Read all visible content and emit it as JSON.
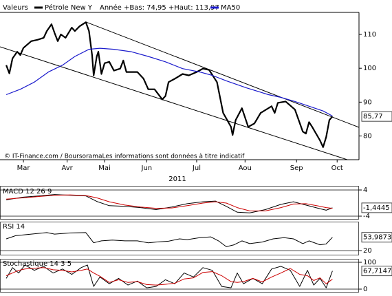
{
  "chart_data": [
    {
      "type": "line",
      "legend_title": "Valeurs",
      "annotation": "Année +Bas: 74,95 +Haut: 113,97",
      "source": "© IT-Finance.com / BoursoramaLes informations sont données à titre indicatif",
      "xlabel": "2011",
      "xlim": [
        0,
        230
      ],
      "ylim": [
        73,
        116.5
      ],
      "xticks": [
        {
          "value": 15,
          "label": "Mar"
        },
        {
          "value": 43,
          "label": "Avr"
        },
        {
          "value": 67,
          "label": "Mai"
        },
        {
          "value": 94,
          "label": "Jun"
        },
        {
          "value": 126,
          "label": "Jul"
        },
        {
          "value": 157,
          "label": "Aou"
        },
        {
          "value": 190,
          "label": "Sep"
        },
        {
          "value": 216,
          "label": "Oct"
        }
      ],
      "yticks": [
        80,
        90,
        100,
        110
      ],
      "series": [
        {
          "name": "Pétrole New Y",
          "color": "#000000",
          "width": 2.2,
          "last_label": "85,77",
          "x": [
            4,
            6,
            8,
            11,
            13,
            15,
            20,
            24,
            28,
            30,
            33,
            35,
            37,
            39,
            42,
            46,
            48,
            51,
            55,
            57,
            59,
            60,
            62,
            63,
            65,
            67,
            70,
            73,
            77,
            79,
            81,
            88,
            92,
            95,
            99,
            104,
            106,
            108,
            112,
            117,
            121,
            126,
            130,
            134,
            139,
            143,
            148,
            149,
            151,
            155,
            159,
            163,
            167,
            174,
            176,
            178,
            183,
            189,
            194,
            196,
            198,
            200,
            205,
            207,
            209,
            211,
            213
          ],
          "values": [
            100.9,
            98.5,
            102.9,
            104.9,
            103.9,
            106.0,
            108.0,
            108.4,
            109.0,
            111.0,
            113.0,
            110.4,
            108.0,
            110.0,
            109.0,
            112.0,
            111.0,
            112.4,
            113.6,
            111.0,
            103.9,
            97.9,
            103.5,
            104.9,
            98.3,
            101.5,
            101.9,
            99.3,
            99.9,
            102.3,
            98.9,
            98.9,
            96.9,
            93.8,
            93.8,
            90.8,
            91.8,
            95.9,
            96.9,
            98.3,
            97.9,
            98.9,
            99.9,
            99.5,
            95.9,
            86.8,
            82.7,
            80.3,
            84.7,
            88.2,
            82.7,
            83.7,
            86.8,
            88.8,
            86.8,
            89.8,
            90.2,
            87.8,
            81.3,
            80.7,
            84.1,
            82.7,
            78.7,
            76.7,
            79.7,
            84.7,
            85.77
          ]
        },
        {
          "name": "MA50",
          "color": "#1a1acc",
          "width": 1.2,
          "x": [
            4,
            13,
            22,
            31,
            40,
            48,
            57,
            64,
            73,
            84,
            95,
            106,
            117,
            128,
            136,
            145,
            158,
            172,
            180,
            189,
            198,
            207,
            213
          ],
          "values": [
            92.2,
            93.8,
            95.9,
            98.9,
            100.9,
            103.5,
            105.6,
            105.9,
            105.6,
            104.9,
            103.5,
            101.9,
            99.9,
            98.9,
            97.9,
            96.3,
            94.2,
            92.2,
            91.4,
            90.2,
            88.8,
            87.4,
            85.9
          ]
        }
      ]
    },
    {
      "type": "line",
      "title": "MACD 12 26 9",
      "xlim": [
        0,
        230
      ],
      "ylim": [
        -4,
        4
      ],
      "yticks": [
        -4,
        4
      ],
      "grid": true,
      "series": [
        {
          "color": "#000000",
          "width": 1,
          "last_label": "-1,4445",
          "x": [
            4,
            15,
            25,
            35,
            45,
            55,
            62,
            70,
            80,
            90,
            100,
            110,
            120,
            130,
            138,
            145,
            152,
            160,
            170,
            180,
            188,
            196,
            204,
            209,
            213
          ],
          "values": [
            1.0,
            1.8,
            2.2,
            2.6,
            2.4,
            2.2,
            0.5,
            -0.8,
            -1.0,
            -1.4,
            -2.0,
            -1.2,
            -0.2,
            0.4,
            0.6,
            -1.0,
            -2.8,
            -3.0,
            -2.0,
            -0.4,
            0.4,
            -0.6,
            -1.6,
            -2.2,
            -1.4445
          ]
        },
        {
          "color": "#cc0000",
          "width": 1,
          "x": [
            4,
            15,
            25,
            35,
            45,
            55,
            62,
            70,
            80,
            90,
            100,
            110,
            120,
            130,
            138,
            145,
            152,
            160,
            170,
            180,
            188,
            196,
            204,
            209,
            213
          ],
          "values": [
            1.2,
            1.6,
            2.0,
            2.4,
            2.5,
            2.3,
            1.6,
            0.4,
            -0.6,
            -1.2,
            -1.6,
            -1.5,
            -0.8,
            0.0,
            0.4,
            0.0,
            -1.4,
            -2.4,
            -2.4,
            -1.4,
            -0.3,
            -0.2,
            -0.9,
            -1.4,
            -1.6
          ]
        }
      ]
    },
    {
      "type": "line",
      "title": "RSI 14",
      "xlim": [
        0,
        230
      ],
      "ylim": [
        15,
        85
      ],
      "yticks": [
        20
      ],
      "grid": true,
      "series": [
        {
          "color": "#000000",
          "width": 1,
          "last_label": "53,9873",
          "x": [
            4,
            10,
            20,
            30,
            35,
            45,
            55,
            60,
            65,
            72,
            80,
            88,
            95,
            100,
            108,
            115,
            120,
            128,
            135,
            140,
            145,
            150,
            155,
            160,
            168,
            175,
            182,
            188,
            194,
            198,
            205,
            209,
            213
          ],
          "values": [
            50,
            58,
            62,
            66,
            62,
            65,
            66,
            40,
            45,
            47,
            45,
            45,
            40,
            42,
            44,
            50,
            48,
            53,
            55,
            45,
            30,
            35,
            45,
            38,
            42,
            50,
            53,
            50,
            38,
            45,
            35,
            37,
            53.9873
          ]
        }
      ]
    },
    {
      "type": "line",
      "title": "Stochastique 14 3 5",
      "xlim": [
        0,
        230
      ],
      "ylim": [
        0,
        100
      ],
      "yticks": [
        0,
        100
      ],
      "grid": true,
      "series": [
        {
          "color": "#000000",
          "width": 1,
          "last_label": "67,7147",
          "x": [
            4,
            8,
            12,
            16,
            22,
            28,
            34,
            40,
            46,
            52,
            56,
            60,
            64,
            70,
            76,
            82,
            88,
            94,
            100,
            106,
            112,
            118,
            124,
            130,
            136,
            142,
            148,
            152,
            156,
            162,
            168,
            174,
            180,
            186,
            192,
            197,
            201,
            205,
            209,
            213
          ],
          "values": [
            40,
            80,
            60,
            90,
            70,
            85,
            60,
            75,
            55,
            80,
            90,
            10,
            45,
            20,
            40,
            15,
            30,
            5,
            10,
            35,
            20,
            60,
            45,
            80,
            70,
            10,
            5,
            60,
            20,
            40,
            20,
            75,
            85,
            70,
            10,
            70,
            15,
            40,
            5,
            67.7147
          ]
        },
        {
          "color": "#cc0000",
          "width": 1,
          "x": [
            4,
            8,
            12,
            16,
            22,
            28,
            34,
            40,
            46,
            52,
            56,
            60,
            64,
            70,
            76,
            82,
            88,
            94,
            100,
            106,
            112,
            118,
            124,
            130,
            136,
            142,
            148,
            152,
            156,
            162,
            168,
            174,
            180,
            186,
            192,
            197,
            201,
            205,
            209,
            213
          ],
          "values": [
            50,
            60,
            70,
            75,
            78,
            80,
            72,
            70,
            64,
            70,
            75,
            60,
            48,
            25,
            35,
            25,
            28,
            17,
            15,
            18,
            22,
            38,
            42,
            62,
            65,
            50,
            28,
            25,
            28,
            40,
            27,
            45,
            60,
            77,
            55,
            50,
            32,
            42,
            20,
            37
          ]
        }
      ]
    }
  ]
}
